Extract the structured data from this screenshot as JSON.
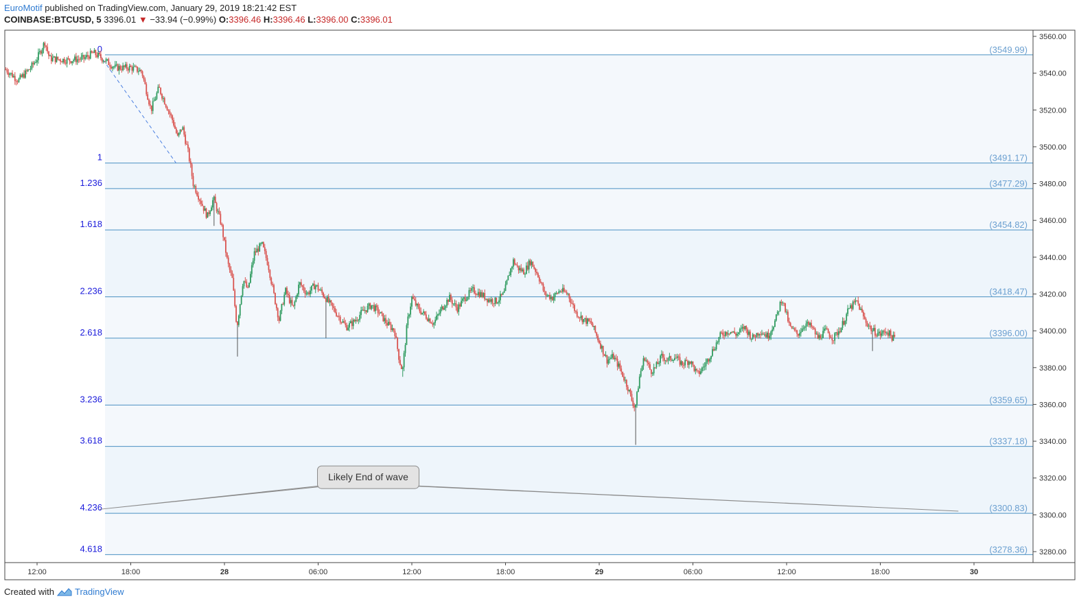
{
  "header": {
    "author": "EuroMotif",
    "published": "published on TradingView.com, January 29, 2019 18:21:42 EST",
    "symbol": "COINBASE:BTCUSD, 5",
    "last": "3396.01",
    "arrow": "▼",
    "change": "−33.94 (−0.99%)",
    "o_label": "O:",
    "o_value": "3396.46",
    "h_label": "H:",
    "h_value": "3396.46",
    "l_label": "L:",
    "l_value": "3396.00",
    "c_label": "C:",
    "c_value": "3396.01"
  },
  "footer": {
    "created_with": "Created with",
    "brand": "TradingView"
  },
  "colors": {
    "up": "#2e9a5e",
    "down": "#d9534f",
    "fib_line": "#4a90c2",
    "fib_label": "#1a1adb",
    "price_label": "#6a9fd0",
    "band_a": "#f4f8fc",
    "band_b": "#eef5fb"
  },
  "chart_data": {
    "type": "candlestick",
    "ylim": [
      3270,
      3565
    ],
    "y_ticks": [
      3280,
      3300,
      3320,
      3340,
      3360,
      3380,
      3400,
      3420,
      3440,
      3460,
      3480,
      3500,
      3520,
      3540,
      3560
    ],
    "y_tick_labels": [
      "3280.00",
      "3300.00",
      "3320.00",
      "3340.00",
      "3360.00",
      "3380.00",
      "3400.00",
      "3420.00",
      "3440.00",
      "3460.00",
      "3480.00",
      "3500.00",
      "3520.00",
      "3540.00",
      "3560.00"
    ],
    "x_ticks": [
      {
        "t": 0,
        "label": "12:00",
        "bold": false
      },
      {
        "t": 6,
        "label": "18:00",
        "bold": false
      },
      {
        "t": 12,
        "label": "28",
        "bold": true
      },
      {
        "t": 18,
        "label": "06:00",
        "bold": false
      },
      {
        "t": 24,
        "label": "12:00",
        "bold": false
      },
      {
        "t": 30,
        "label": "18:00",
        "bold": false
      },
      {
        "t": 36,
        "label": "29",
        "bold": true
      },
      {
        "t": 42,
        "label": "06:00",
        "bold": false
      },
      {
        "t": 48,
        "label": "12:00",
        "bold": false
      },
      {
        "t": 54,
        "label": "18:00",
        "bold": false
      },
      {
        "t": 60,
        "label": "30",
        "bold": true
      }
    ],
    "xlim_hours": [
      -2,
      64
    ],
    "price_path": [
      [
        -2,
        3542
      ],
      [
        -1.2,
        3536
      ],
      [
        -0.4,
        3543
      ],
      [
        0,
        3548
      ],
      [
        0.5,
        3557
      ],
      [
        0.8,
        3548
      ],
      [
        2,
        3547
      ],
      [
        3,
        3548
      ],
      [
        3.6,
        3551
      ],
      [
        4,
        3549
      ],
      [
        5,
        3543
      ],
      [
        6,
        3543
      ],
      [
        6.7,
        3541
      ],
      [
        7.3,
        3520
      ],
      [
        7.8,
        3532
      ],
      [
        8.3,
        3522
      ],
      [
        8.7,
        3514
      ],
      [
        9,
        3505
      ],
      [
        9.3,
        3511
      ],
      [
        9.7,
        3496
      ],
      [
        10,
        3480
      ],
      [
        10.4,
        3472
      ],
      [
        10.9,
        3462
      ],
      [
        11.3,
        3472
      ],
      [
        11.8,
        3458
      ],
      [
        12.2,
        3437
      ],
      [
        12.5,
        3428
      ],
      [
        12.8,
        3402
      ],
      [
        13.2,
        3428
      ],
      [
        13.5,
        3422
      ],
      [
        13.9,
        3442
      ],
      [
        14.4,
        3447
      ],
      [
        14.8,
        3436
      ],
      [
        15.2,
        3418
      ],
      [
        15.5,
        3406
      ],
      [
        15.9,
        3422
      ],
      [
        16.4,
        3412
      ],
      [
        16.8,
        3426
      ],
      [
        17.3,
        3420
      ],
      [
        17.8,
        3425
      ],
      [
        18.3,
        3420
      ],
      [
        18.8,
        3414
      ],
      [
        19.3,
        3408
      ],
      [
        19.8,
        3402
      ],
      [
        20.3,
        3405
      ],
      [
        20.8,
        3410
      ],
      [
        21.4,
        3414
      ],
      [
        21.9,
        3410
      ],
      [
        22.4,
        3404
      ],
      [
        22.9,
        3400
      ],
      [
        23.2,
        3384
      ],
      [
        23.4,
        3378
      ],
      [
        23.7,
        3404
      ],
      [
        24,
        3418
      ],
      [
        24.4,
        3412
      ],
      [
        24.9,
        3408
      ],
      [
        25.4,
        3404
      ],
      [
        25.9,
        3412
      ],
      [
        26.4,
        3418
      ],
      [
        26.9,
        3412
      ],
      [
        27.4,
        3418
      ],
      [
        27.9,
        3422
      ],
      [
        28.4,
        3420
      ],
      [
        28.9,
        3417
      ],
      [
        29.4,
        3416
      ],
      [
        29.9,
        3420
      ],
      [
        30.2,
        3430
      ],
      [
        30.5,
        3438
      ],
      [
        30.8,
        3434
      ],
      [
        31.2,
        3432
      ],
      [
        31.6,
        3438
      ],
      [
        32.1,
        3430
      ],
      [
        32.5,
        3420
      ],
      [
        33,
        3418
      ],
      [
        33.5,
        3422
      ],
      [
        34,
        3420
      ],
      [
        34.5,
        3410
      ],
      [
        35,
        3406
      ],
      [
        35.5,
        3404
      ],
      [
        36,
        3394
      ],
      [
        36.5,
        3384
      ],
      [
        36.9,
        3386
      ],
      [
        37.3,
        3380
      ],
      [
        37.8,
        3370
      ],
      [
        38.1,
        3362
      ],
      [
        38.3,
        3358
      ],
      [
        38.6,
        3376
      ],
      [
        38.9,
        3386
      ],
      [
        39.3,
        3378
      ],
      [
        39.6,
        3380
      ],
      [
        40,
        3386
      ],
      [
        40.4,
        3384
      ],
      [
        40.8,
        3386
      ],
      [
        41.3,
        3382
      ],
      [
        41.8,
        3384
      ],
      [
        42.3,
        3376
      ],
      [
        42.8,
        3382
      ],
      [
        43.3,
        3390
      ],
      [
        43.8,
        3398
      ],
      [
        44.3,
        3400
      ],
      [
        44.8,
        3398
      ],
      [
        45.3,
        3402
      ],
      [
        45.8,
        3396
      ],
      [
        46.3,
        3400
      ],
      [
        46.8,
        3397
      ],
      [
        47.3,
        3406
      ],
      [
        47.7,
        3418
      ],
      [
        48.2,
        3402
      ],
      [
        48.7,
        3398
      ],
      [
        49.2,
        3404
      ],
      [
        49.6,
        3402
      ],
      [
        50,
        3396
      ],
      [
        50.5,
        3400
      ],
      [
        51,
        3396
      ],
      [
        51.5,
        3402
      ],
      [
        52,
        3412
      ],
      [
        52.5,
        3416
      ],
      [
        53,
        3406
      ],
      [
        53.5,
        3400
      ],
      [
        54,
        3398
      ],
      [
        54.4,
        3400
      ],
      [
        54.8,
        3396
      ],
      [
        55,
        3396
      ]
    ],
    "trend_line": {
      "from": {
        "t": 4,
        "p": 3549.99
      },
      "to": {
        "t": 8.9,
        "p": 3491.17
      }
    },
    "fib_levels": [
      {
        "ratio": "0",
        "price": 3549.99,
        "price_label": "(3549.99)"
      },
      {
        "ratio": "1",
        "price": 3491.17,
        "price_label": "(3491.17)"
      },
      {
        "ratio": "1.236",
        "price": 3477.29,
        "price_label": "(3477.29)"
      },
      {
        "ratio": "1.618",
        "price": 3454.82,
        "price_label": "(3454.82)"
      },
      {
        "ratio": "2.236",
        "price": 3418.47,
        "price_label": "(3418.47)"
      },
      {
        "ratio": "2.618",
        "price": 3396.0,
        "price_label": "(3396.00)"
      },
      {
        "ratio": "3.236",
        "price": 3359.65,
        "price_label": "(3359.65)"
      },
      {
        "ratio": "3.618",
        "price": 3337.18,
        "price_label": "(3337.18)"
      },
      {
        "ratio": "4.236",
        "price": 3300.83,
        "price_label": "(3300.83)"
      },
      {
        "ratio": "4.618",
        "price": 3278.36,
        "price_label": "(3278.36)"
      }
    ],
    "callout": {
      "text": "Likely End of wave",
      "anchor_t": 18,
      "anchor_p": 3318
    },
    "callout_tails": [
      {
        "t": 4,
        "p": 3303
      },
      {
        "t": 59,
        "p": 3302
      }
    ]
  }
}
